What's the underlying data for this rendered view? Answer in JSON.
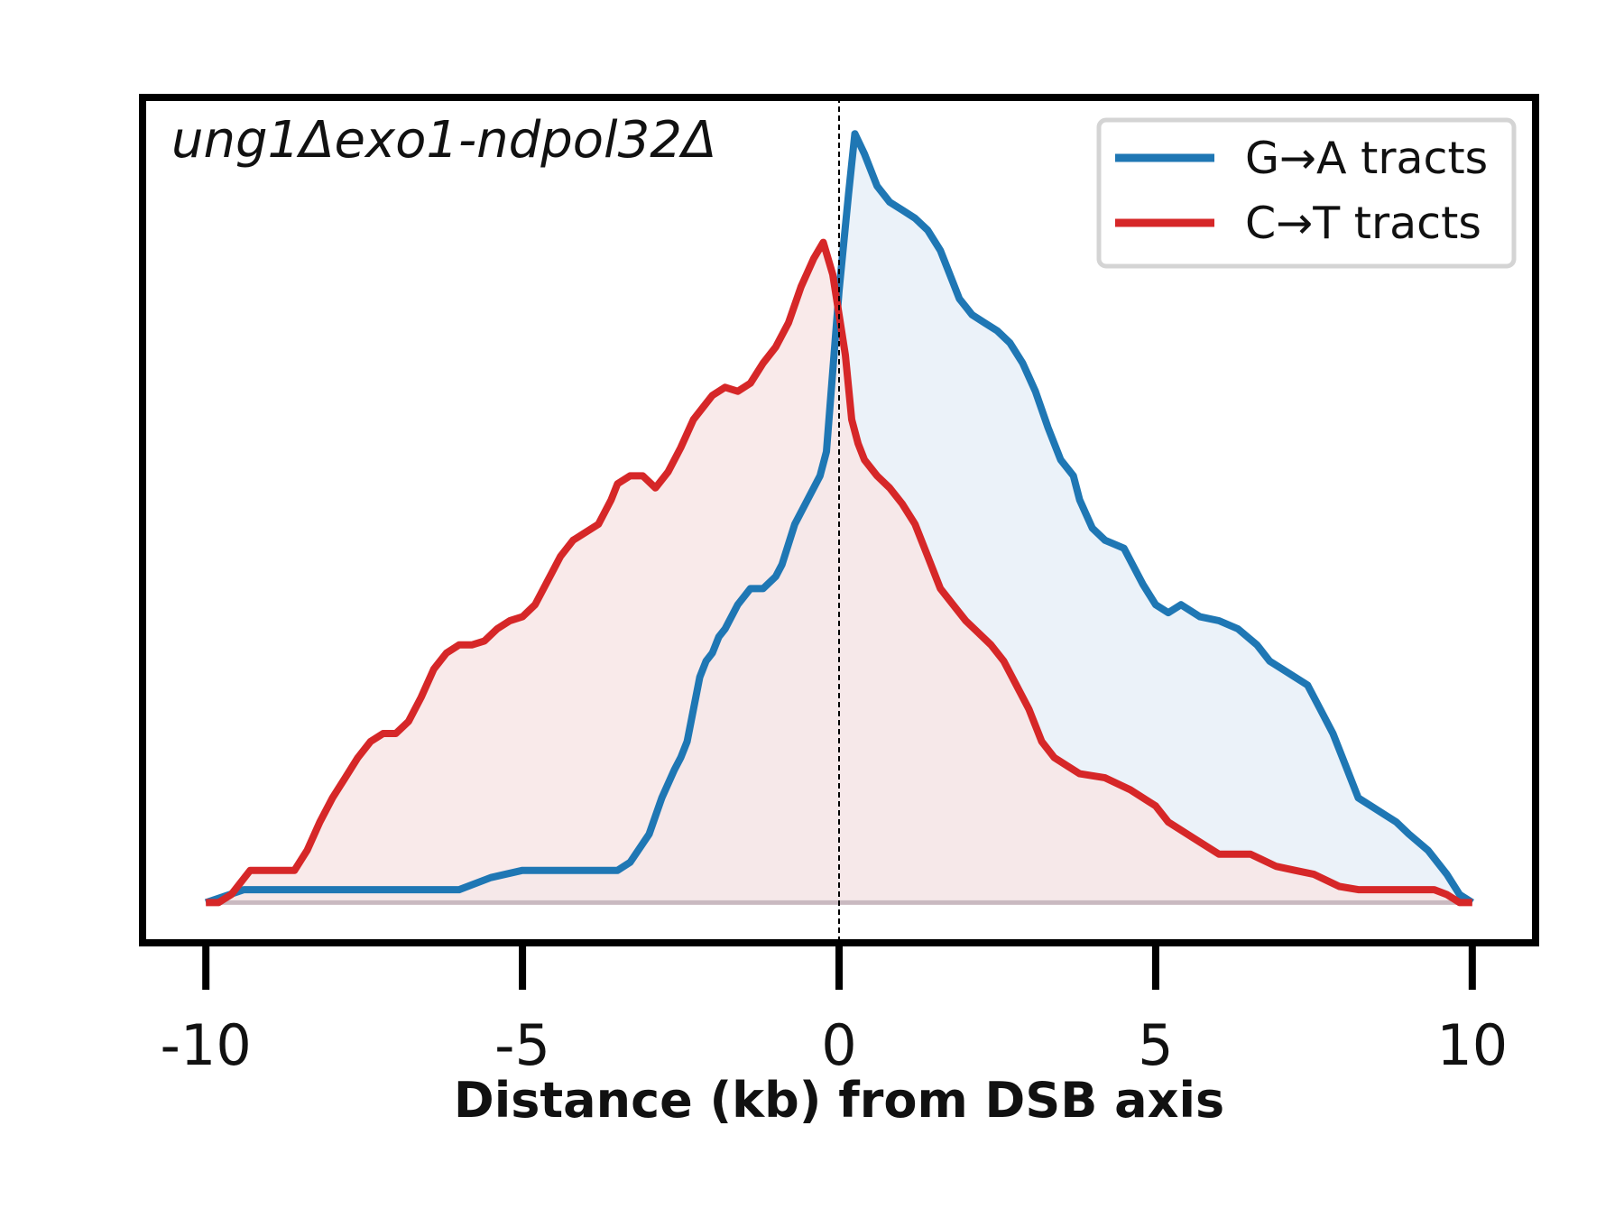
{
  "chart_data": {
    "type": "area",
    "annotation": "ung1Δexo1-ndpol32Δ",
    "xlabel": "Distance (kb) from DSB axis",
    "ylabel": "",
    "xlim": [
      -11.0,
      11.0
    ],
    "ylim": [
      -0.05,
      1.0
    ],
    "xticks": [
      -10,
      -5,
      0,
      5,
      10
    ],
    "xtick_labels": [
      "-10",
      "-5",
      "0",
      "5",
      "10"
    ],
    "vline_x": 0,
    "grid": false,
    "legend_position": "top-right",
    "series": [
      {
        "name": "G→A tracts",
        "color": "#1f77b4",
        "fill_color": "#e8f0f8",
        "points": [
          [
            -10,
            0.0
          ],
          [
            -9.4,
            0.016
          ],
          [
            -7,
            0.016
          ],
          [
            -6.0,
            0.016
          ],
          [
            -5.5,
            0.031
          ],
          [
            -5.0,
            0.04
          ],
          [
            -4.0,
            0.04
          ],
          [
            -3.5,
            0.04
          ],
          [
            -3.3,
            0.05
          ],
          [
            -3.0,
            0.085
          ],
          [
            -2.8,
            0.13
          ],
          [
            -2.6,
            0.165
          ],
          [
            -2.5,
            0.18
          ],
          [
            -2.4,
            0.2
          ],
          [
            -2.3,
            0.24
          ],
          [
            -2.2,
            0.28
          ],
          [
            -2.1,
            0.3
          ],
          [
            -2.0,
            0.31
          ],
          [
            -1.9,
            0.33
          ],
          [
            -1.8,
            0.34
          ],
          [
            -1.6,
            0.37
          ],
          [
            -1.5,
            0.38
          ],
          [
            -1.4,
            0.39
          ],
          [
            -1.2,
            0.39
          ],
          [
            -1.0,
            0.405
          ],
          [
            -0.9,
            0.42
          ],
          [
            -0.7,
            0.47
          ],
          [
            -0.5,
            0.5
          ],
          [
            -0.3,
            0.53
          ],
          [
            -0.2,
            0.56
          ],
          [
            0.0,
            0.76
          ],
          [
            0.15,
            0.88
          ],
          [
            0.25,
            0.955
          ],
          [
            0.4,
            0.93
          ],
          [
            0.6,
            0.89
          ],
          [
            0.8,
            0.87
          ],
          [
            1.0,
            0.86
          ],
          [
            1.2,
            0.85
          ],
          [
            1.4,
            0.835
          ],
          [
            1.6,
            0.81
          ],
          [
            1.8,
            0.77
          ],
          [
            1.9,
            0.75
          ],
          [
            2.0,
            0.74
          ],
          [
            2.1,
            0.73
          ],
          [
            2.3,
            0.72
          ],
          [
            2.5,
            0.71
          ],
          [
            2.7,
            0.695
          ],
          [
            2.9,
            0.67
          ],
          [
            3.1,
            0.635
          ],
          [
            3.3,
            0.59
          ],
          [
            3.5,
            0.55
          ],
          [
            3.7,
            0.53
          ],
          [
            3.8,
            0.5
          ],
          [
            4.0,
            0.465
          ],
          [
            4.2,
            0.45
          ],
          [
            4.5,
            0.44
          ],
          [
            4.8,
            0.395
          ],
          [
            5.0,
            0.37
          ],
          [
            5.2,
            0.36
          ],
          [
            5.4,
            0.37
          ],
          [
            5.7,
            0.355
          ],
          [
            6.0,
            0.35
          ],
          [
            6.3,
            0.34
          ],
          [
            6.6,
            0.32
          ],
          [
            6.8,
            0.3
          ],
          [
            7.0,
            0.29
          ],
          [
            7.2,
            0.28
          ],
          [
            7.4,
            0.27
          ],
          [
            7.6,
            0.24
          ],
          [
            7.8,
            0.21
          ],
          [
            8.0,
            0.17
          ],
          [
            8.2,
            0.13
          ],
          [
            8.4,
            0.12
          ],
          [
            8.6,
            0.11
          ],
          [
            8.8,
            0.1
          ],
          [
            9.0,
            0.085
          ],
          [
            9.3,
            0.065
          ],
          [
            9.6,
            0.035
          ],
          [
            9.8,
            0.01
          ],
          [
            10.0,
            0.0
          ]
        ]
      },
      {
        "name": "C→T tracts",
        "color": "#d62728",
        "fill_color": "#f8e6e6",
        "points": [
          [
            -10,
            0.0
          ],
          [
            -9.8,
            0.0
          ],
          [
            -9.6,
            0.01
          ],
          [
            -9.3,
            0.04
          ],
          [
            -9.0,
            0.04
          ],
          [
            -8.6,
            0.04
          ],
          [
            -8.4,
            0.065
          ],
          [
            -8.2,
            0.1
          ],
          [
            -8.0,
            0.13
          ],
          [
            -7.8,
            0.155
          ],
          [
            -7.6,
            0.18
          ],
          [
            -7.4,
            0.2
          ],
          [
            -7.2,
            0.21
          ],
          [
            -7.0,
            0.21
          ],
          [
            -6.8,
            0.225
          ],
          [
            -6.6,
            0.255
          ],
          [
            -6.4,
            0.29
          ],
          [
            -6.2,
            0.31
          ],
          [
            -6.0,
            0.32
          ],
          [
            -5.8,
            0.32
          ],
          [
            -5.6,
            0.325
          ],
          [
            -5.4,
            0.34
          ],
          [
            -5.2,
            0.35
          ],
          [
            -5.0,
            0.355
          ],
          [
            -4.8,
            0.37
          ],
          [
            -4.6,
            0.4
          ],
          [
            -4.4,
            0.43
          ],
          [
            -4.2,
            0.45
          ],
          [
            -4.0,
            0.46
          ],
          [
            -3.8,
            0.47
          ],
          [
            -3.6,
            0.5
          ],
          [
            -3.5,
            0.52
          ],
          [
            -3.3,
            0.53
          ],
          [
            -3.1,
            0.53
          ],
          [
            -2.9,
            0.515
          ],
          [
            -2.7,
            0.535
          ],
          [
            -2.5,
            0.565
          ],
          [
            -2.3,
            0.6
          ],
          [
            -2.1,
            0.62
          ],
          [
            -2.0,
            0.63
          ],
          [
            -1.8,
            0.64
          ],
          [
            -1.6,
            0.635
          ],
          [
            -1.4,
            0.645
          ],
          [
            -1.2,
            0.67
          ],
          [
            -1.0,
            0.69
          ],
          [
            -0.8,
            0.72
          ],
          [
            -0.6,
            0.765
          ],
          [
            -0.4,
            0.8
          ],
          [
            -0.25,
            0.82
          ],
          [
            -0.1,
            0.78
          ],
          [
            0.0,
            0.73
          ],
          [
            0.1,
            0.68
          ],
          [
            0.2,
            0.6
          ],
          [
            0.3,
            0.57
          ],
          [
            0.4,
            0.55
          ],
          [
            0.6,
            0.53
          ],
          [
            0.8,
            0.515
          ],
          [
            1.0,
            0.495
          ],
          [
            1.2,
            0.47
          ],
          [
            1.4,
            0.43
          ],
          [
            1.6,
            0.39
          ],
          [
            1.8,
            0.37
          ],
          [
            2.0,
            0.35
          ],
          [
            2.2,
            0.335
          ],
          [
            2.4,
            0.32
          ],
          [
            2.6,
            0.3
          ],
          [
            2.8,
            0.27
          ],
          [
            3.0,
            0.24
          ],
          [
            3.2,
            0.2
          ],
          [
            3.4,
            0.18
          ],
          [
            3.6,
            0.17
          ],
          [
            3.8,
            0.16
          ],
          [
            4.2,
            0.155
          ],
          [
            4.6,
            0.14
          ],
          [
            4.8,
            0.13
          ],
          [
            5.0,
            0.12
          ],
          [
            5.2,
            0.1
          ],
          [
            5.6,
            0.08
          ],
          [
            6.0,
            0.06
          ],
          [
            6.5,
            0.06
          ],
          [
            6.9,
            0.045
          ],
          [
            7.2,
            0.04
          ],
          [
            7.5,
            0.035
          ],
          [
            7.9,
            0.02
          ],
          [
            8.2,
            0.016
          ],
          [
            8.6,
            0.016
          ],
          [
            9.0,
            0.016
          ],
          [
            9.4,
            0.016
          ],
          [
            9.6,
            0.01
          ],
          [
            9.8,
            0.0
          ],
          [
            10.0,
            0.0
          ]
        ]
      }
    ]
  }
}
